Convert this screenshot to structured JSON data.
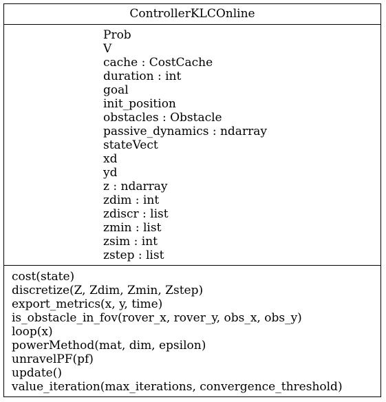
{
  "class": {
    "name": "ControllerKLCOnline",
    "attributes": [
      "Prob",
      "V",
      "cache : CostCache",
      "duration : int",
      "goal",
      "init_position",
      "obstacles : Obstacle",
      "passive_dynamics : ndarray",
      "stateVect",
      "xd",
      "yd",
      "z : ndarray",
      "zdim : int",
      "zdiscr : list",
      "zmin : list",
      "zsim : int",
      "zstep : list"
    ],
    "methods": [
      "cost(state)",
      "discretize(Z, Zdim, Zmin, Zstep)",
      "export_metrics(x, y, time)",
      "is_obstacle_in_fov(rover_x, rover_y, obs_x, obs_y)",
      "loop(x)",
      "powerMethod(mat, dim, epsilon)",
      "unravelPF(pf)",
      "update()",
      "value_iteration(max_iterations, convergence_threshold)"
    ]
  }
}
